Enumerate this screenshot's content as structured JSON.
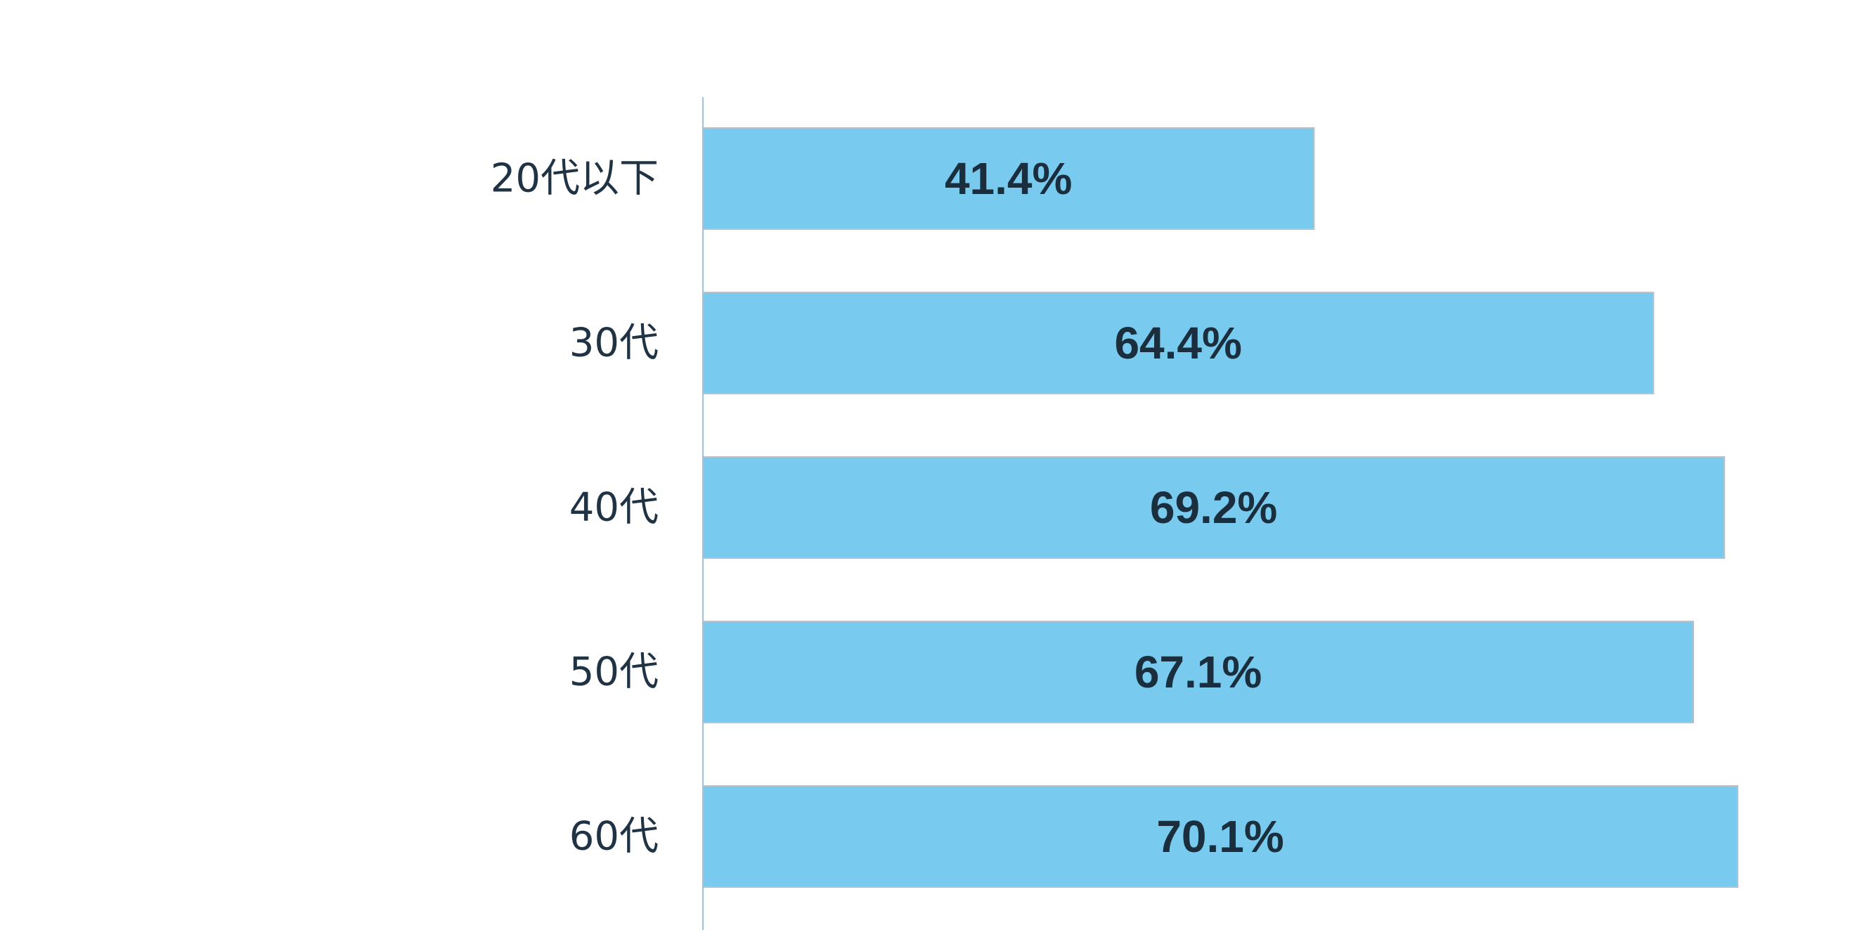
{
  "chart_data": {
    "type": "bar",
    "orientation": "horizontal",
    "categories": [
      "20代以下",
      "30代",
      "40代",
      "50代",
      "60代"
    ],
    "values": [
      41.4,
      64.4,
      69.2,
      67.1,
      70.1
    ],
    "value_labels": [
      "41.4%",
      "64.4%",
      "69.2%",
      "67.1%",
      "70.1%"
    ],
    "unit": "%",
    "title": "",
    "xlabel": "",
    "ylabel": "",
    "xlim": [
      0,
      100
    ],
    "grid": false,
    "legend": "none",
    "colors": {
      "bar_fill": "#78cbee",
      "bar_stroke": "#b7c2c9",
      "axis_line": "#9fc3dc",
      "category_text": "#1f3344",
      "value_text": "#1a2e3d"
    }
  }
}
